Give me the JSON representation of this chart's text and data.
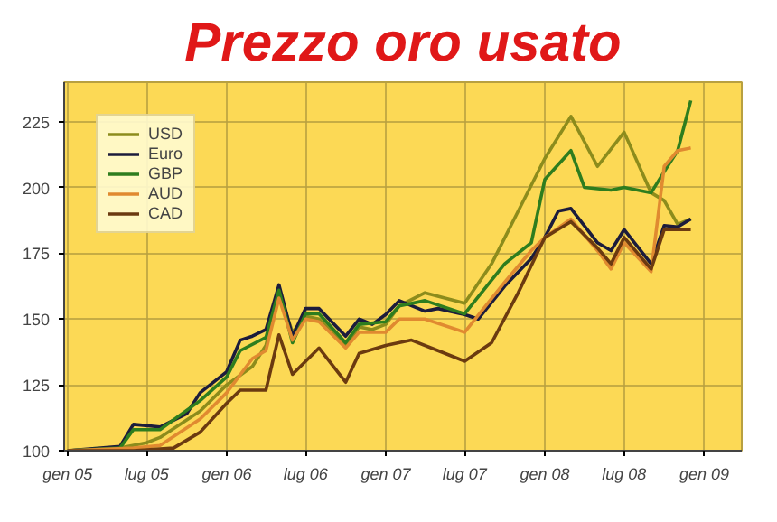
{
  "chart_data": {
    "type": "line",
    "title": "Prezzo oro usato",
    "xlim": [
      "2004-12-24",
      "2009-03-28"
    ],
    "ylim": [
      100,
      240
    ],
    "xticks": [
      {
        "value": "2005-01",
        "label": "gen 05"
      },
      {
        "value": "2005-07",
        "label": "lug 05"
      },
      {
        "value": "2006-01",
        "label": "gen 06"
      },
      {
        "value": "2006-07",
        "label": "lug 06"
      },
      {
        "value": "2007-01",
        "label": "gen 07"
      },
      {
        "value": "2007-07",
        "label": "lug 07"
      },
      {
        "value": "2008-01",
        "label": "gen 08"
      },
      {
        "value": "2008-07",
        "label": "lug 08"
      },
      {
        "value": "2009-01",
        "label": "gen 09"
      }
    ],
    "yticks": [
      100,
      125,
      150,
      175,
      200,
      225
    ],
    "grid": true,
    "legend": "top left",
    "marker": "none",
    "line_style": "solid",
    "series": [
      {
        "name": "USD",
        "color": "#8c8c1c",
        "x": [
          "2005-01",
          "2005-05",
          "2005-07",
          "2005-08",
          "2005-11",
          "2006-01",
          "2006-03",
          "2006-04",
          "2006-05",
          "2006-06",
          "2006-07",
          "2006-08",
          "2006-10",
          "2006-11",
          "2006-12",
          "2007-01",
          "2007-02",
          "2007-04",
          "2007-07",
          "2007-09",
          "2007-11",
          "2008-01",
          "2008-03",
          "2008-05",
          "2008-07",
          "2008-09",
          "2008-10",
          "2008-11",
          "2008-12"
        ],
        "values": [
          100,
          101,
          103,
          105,
          115,
          125,
          132,
          140,
          160,
          145,
          151,
          150,
          140,
          147,
          146,
          148,
          155,
          160,
          156,
          171,
          191,
          211,
          227,
          208,
          221,
          198,
          195,
          186,
          188
        ]
      },
      {
        "name": "Euro",
        "color": "#1c1c3c",
        "x": [
          "2005-01",
          "2005-05",
          "2005-06",
          "2005-08",
          "2005-10",
          "2005-11",
          "2006-01",
          "2006-02",
          "2006-03",
          "2006-04",
          "2006-05",
          "2006-06",
          "2006-07",
          "2006-08",
          "2006-10",
          "2006-11",
          "2006-12",
          "2007-01",
          "2007-02",
          "2007-04",
          "2007-05",
          "2007-07",
          "2007-08",
          "2007-10",
          "2007-12",
          "2008-01",
          "2008-02",
          "2008-03",
          "2008-05",
          "2008-06",
          "2008-07",
          "2008-09",
          "2008-10",
          "2008-11",
          "2008-12"
        ],
        "values": [
          100,
          101.6,
          110,
          109,
          114,
          122,
          130,
          142,
          143.5,
          146,
          163,
          143.5,
          154,
          154,
          143.5,
          150,
          148,
          151.7,
          157,
          153,
          154,
          151.7,
          150,
          162.5,
          173,
          181,
          191,
          192,
          179,
          176,
          184,
          171,
          185.5,
          185,
          188
        ]
      },
      {
        "name": "GBP",
        "color": "#2e7d1e",
        "x": [
          "2005-01",
          "2005-05",
          "2005-06",
          "2005-08",
          "2005-11",
          "2006-01",
          "2006-02",
          "2006-04",
          "2006-05",
          "2006-06",
          "2006-07",
          "2006-08",
          "2006-10",
          "2006-11",
          "2007-01",
          "2007-02",
          "2007-04",
          "2007-07",
          "2007-10",
          "2007-12",
          "2008-01",
          "2008-03",
          "2008-04",
          "2008-06",
          "2008-07",
          "2008-09",
          "2008-10",
          "2008-11",
          "2008-12"
        ],
        "values": [
          100,
          101,
          108,
          108,
          119,
          128,
          138,
          143,
          161,
          141,
          152,
          152,
          141,
          148,
          149,
          155,
          157,
          152,
          171,
          179,
          203,
          214,
          200,
          199,
          200,
          198,
          206,
          214,
          233
        ]
      },
      {
        "name": "AUD",
        "color": "#e08a30",
        "x": [
          "2005-01",
          "2005-06",
          "2005-08",
          "2005-11",
          "2006-01",
          "2006-03",
          "2006-04",
          "2006-05",
          "2006-06",
          "2006-07",
          "2006-08",
          "2006-10",
          "2006-11",
          "2007-01",
          "2007-02",
          "2007-04",
          "2007-07",
          "2007-10",
          "2007-12",
          "2008-01",
          "2008-03",
          "2008-05",
          "2008-06",
          "2008-07",
          "2008-09",
          "2008-10",
          "2008-11",
          "2008-12"
        ],
        "values": [
          100,
          101,
          102,
          112,
          122,
          135,
          138,
          158,
          142,
          150,
          149,
          139,
          145,
          145,
          150,
          150,
          145,
          164,
          176,
          181,
          188,
          176,
          169,
          179,
          168,
          208,
          214,
          215
        ]
      },
      {
        "name": "CAD",
        "color": "#6b3a10",
        "x": [
          "2005-01",
          "2005-06",
          "2005-09",
          "2005-11",
          "2006-01",
          "2006-02",
          "2006-04",
          "2006-05",
          "2006-06",
          "2006-08",
          "2006-10",
          "2006-11",
          "2007-01",
          "2007-03",
          "2007-05",
          "2007-07",
          "2007-09",
          "2007-11",
          "2008-01",
          "2008-03",
          "2008-05",
          "2008-06",
          "2008-07",
          "2008-09",
          "2008-10",
          "2008-12"
        ],
        "values": [
          100,
          100,
          101,
          107,
          118,
          123,
          123,
          144,
          129,
          139,
          126,
          137,
          140,
          142,
          138,
          134,
          141,
          160,
          181,
          187,
          177,
          171,
          181,
          169,
          184,
          184
        ]
      }
    ]
  }
}
